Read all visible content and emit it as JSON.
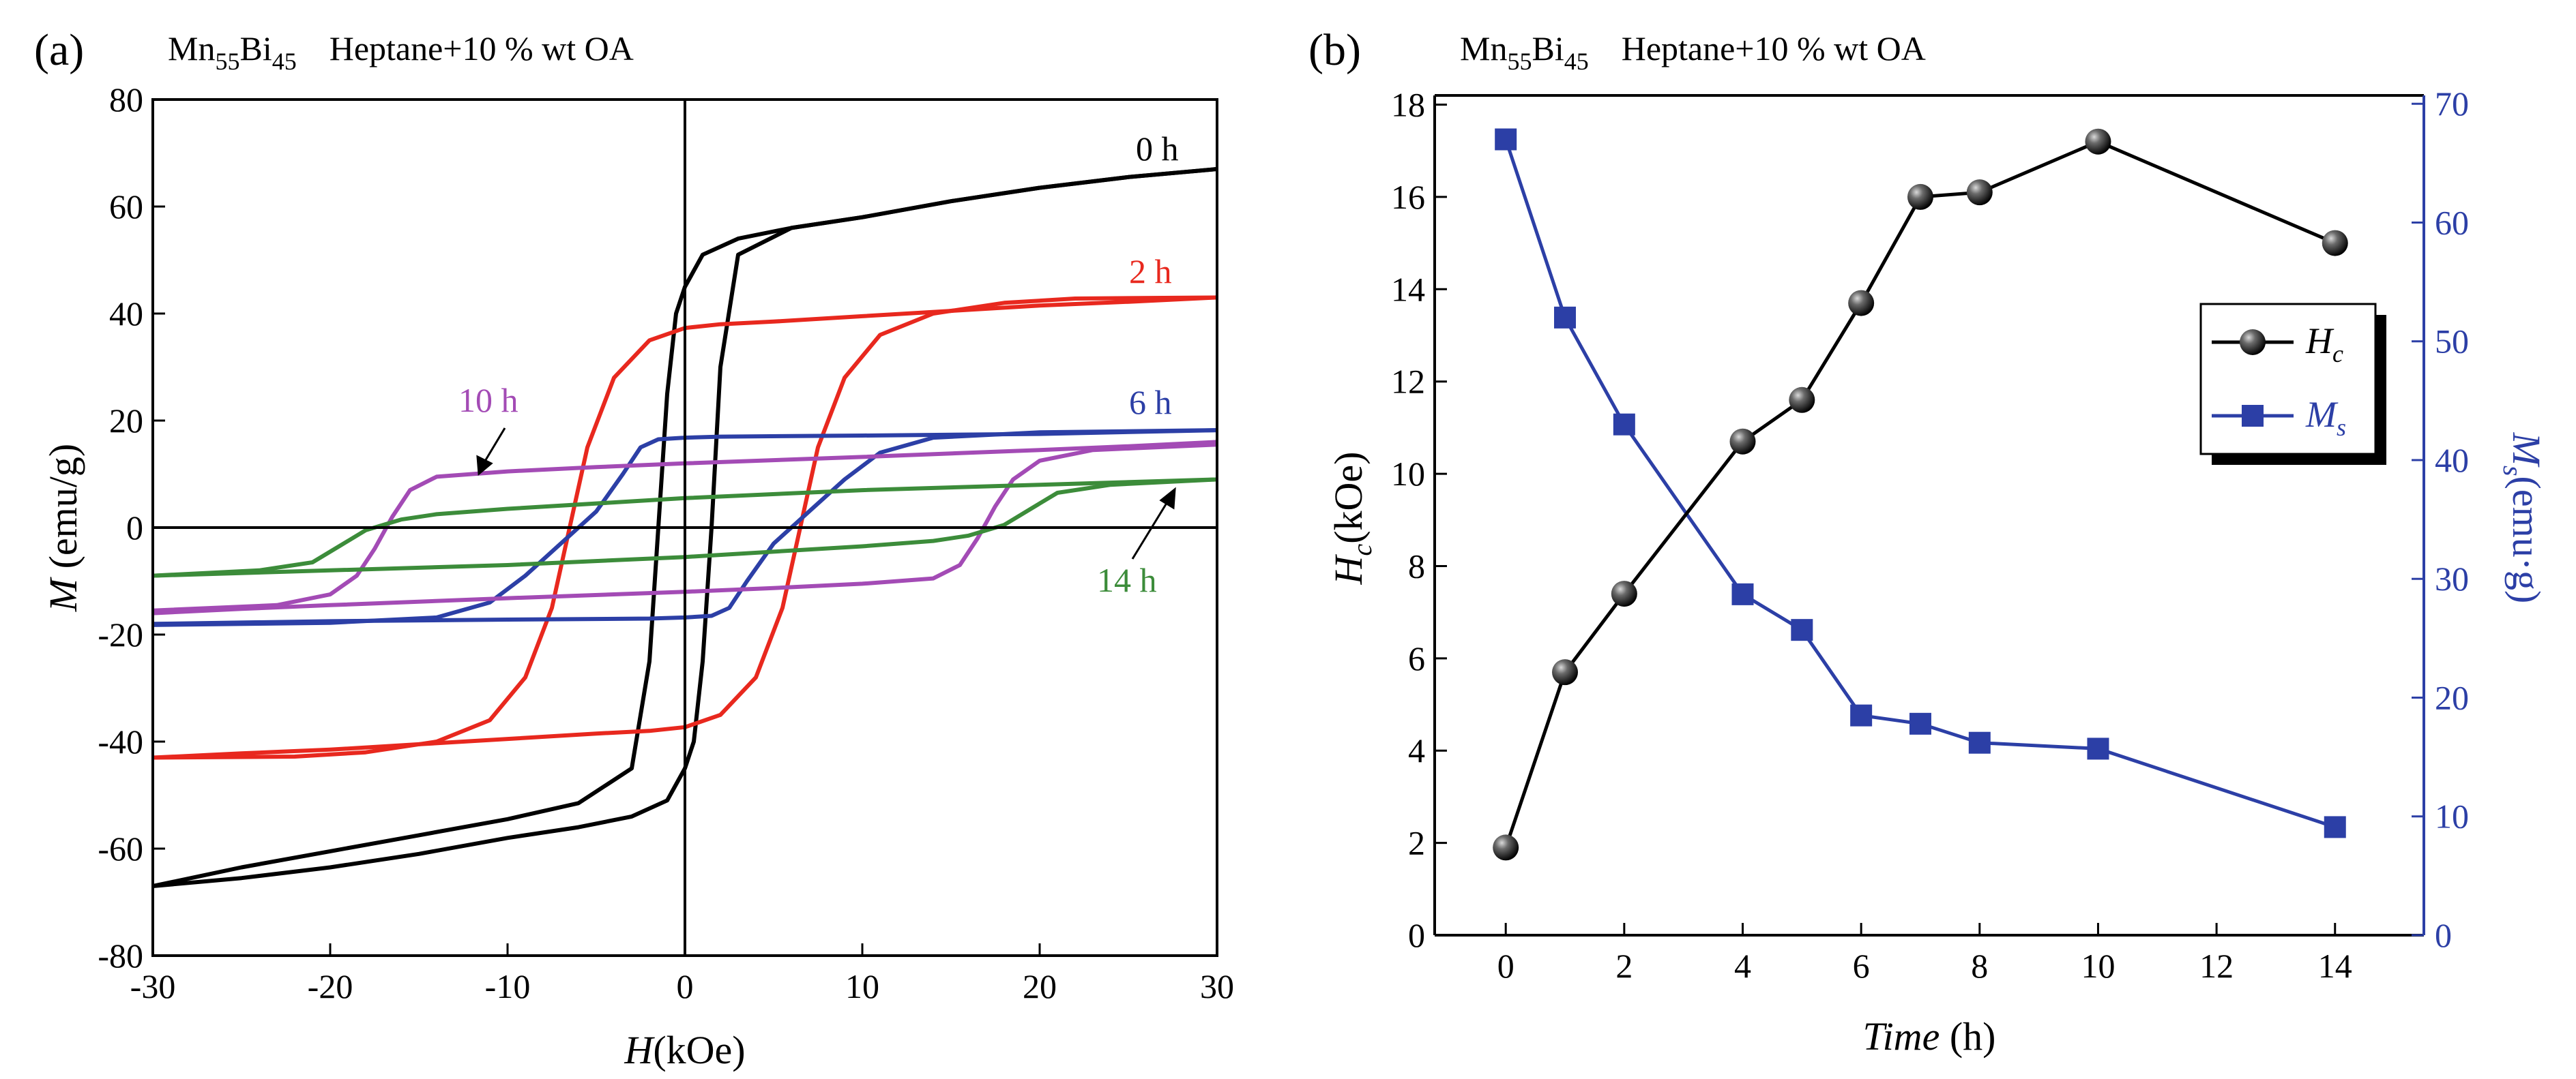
{
  "chart_data": [
    {
      "id": "a",
      "type": "line",
      "panel_label": "(a)",
      "title": {
        "sample": "Mn",
        "sub1": "55",
        "element2": "Bi",
        "sub2": "45",
        "condition": "Heptane+10 % wt OA"
      },
      "xlabel": {
        "italic": "H",
        "rest": "(kOe)"
      },
      "ylabel": {
        "italic": "M",
        "rest": " (emu/g)"
      },
      "xlim": [
        -30,
        30
      ],
      "ylim": [
        -80,
        80
      ],
      "xticks": [
        -30,
        -20,
        -10,
        0,
        10,
        20,
        30
      ],
      "yticks": [
        -80,
        -60,
        -40,
        -20,
        0,
        20,
        40,
        60,
        80
      ],
      "reference_lines": {
        "x": 0,
        "y": 0
      },
      "series": [
        {
          "name": "0 h",
          "color": "#000000",
          "upper": [
            [
              -30,
              -67
            ],
            [
              -25,
              -63.5
            ],
            [
              -20,
              -60.5
            ],
            [
              -15,
              -57.5
            ],
            [
              -10,
              -54.5
            ],
            [
              -6,
              -51.5
            ],
            [
              -3,
              -45
            ],
            [
              -2,
              -25
            ],
            [
              -1.5,
              0
            ],
            [
              -1,
              25
            ],
            [
              -0.5,
              40
            ],
            [
              0,
              45
            ],
            [
              1,
              51
            ],
            [
              3,
              54
            ],
            [
              6,
              56
            ],
            [
              10,
              58
            ],
            [
              15,
              61
            ],
            [
              20,
              63.5
            ],
            [
              25,
              65.5
            ],
            [
              30,
              67
            ]
          ],
          "lower": [
            [
              30,
              67
            ],
            [
              25,
              65.5
            ],
            [
              20,
              63.5
            ],
            [
              15,
              61
            ],
            [
              10,
              58
            ],
            [
              6,
              56
            ],
            [
              3,
              51
            ],
            [
              2,
              30
            ],
            [
              1.5,
              0
            ],
            [
              1,
              -25
            ],
            [
              0.5,
              -40
            ],
            [
              0,
              -45
            ],
            [
              -1,
              -51
            ],
            [
              -3,
              -54
            ],
            [
              -6,
              -56
            ],
            [
              -10,
              -58
            ],
            [
              -15,
              -61
            ],
            [
              -20,
              -63.5
            ],
            [
              -25,
              -65.5
            ],
            [
              -30,
              -67
            ]
          ]
        },
        {
          "name": "2 h",
          "color": "#e8281e",
          "upper": [
            [
              -30,
              -43
            ],
            [
              -25,
              -42.2
            ],
            [
              -20,
              -41.5
            ],
            [
              -15,
              -40.5
            ],
            [
              -10,
              -39.5
            ],
            [
              -5,
              -38.5
            ],
            [
              -2,
              -38
            ],
            [
              0,
              -37.3
            ],
            [
              2,
              -35
            ],
            [
              4,
              -28
            ],
            [
              5.5,
              -15
            ],
            [
              6.5,
              0
            ],
            [
              7.5,
              15
            ],
            [
              9,
              28
            ],
            [
              11,
              36
            ],
            [
              14,
              40
            ],
            [
              18,
              42
            ],
            [
              22,
              42.8
            ],
            [
              30,
              43
            ]
          ],
          "lower": [
            [
              30,
              43
            ],
            [
              25,
              42.2
            ],
            [
              20,
              41.5
            ],
            [
              15,
              40.5
            ],
            [
              10,
              39.5
            ],
            [
              5,
              38.5
            ],
            [
              2,
              38
            ],
            [
              0,
              37.3
            ],
            [
              -2,
              35
            ],
            [
              -4,
              28
            ],
            [
              -5.5,
              15
            ],
            [
              -6.5,
              0
            ],
            [
              -7.5,
              -15
            ],
            [
              -9,
              -28
            ],
            [
              -11,
              -36
            ],
            [
              -14,
              -40
            ],
            [
              -18,
              -42
            ],
            [
              -22,
              -42.8
            ],
            [
              -30,
              -43
            ]
          ]
        },
        {
          "name": "6 h",
          "color": "#2c3fa6",
          "upper": [
            [
              -30,
              -18
            ],
            [
              -20,
              -17.5
            ],
            [
              -10,
              -17.2
            ],
            [
              -2,
              -17
            ],
            [
              0,
              -16.8
            ],
            [
              1.5,
              -16.5
            ],
            [
              2.5,
              -15
            ],
            [
              3.5,
              -10
            ],
            [
              5,
              -3
            ],
            [
              7,
              3
            ],
            [
              9,
              9
            ],
            [
              11,
              14
            ],
            [
              14,
              16.8
            ],
            [
              20,
              17.8
            ],
            [
              30,
              18.2
            ]
          ],
          "lower": [
            [
              30,
              18.2
            ],
            [
              20,
              17.5
            ],
            [
              10,
              17.2
            ],
            [
              2,
              17
            ],
            [
              0,
              16.8
            ],
            [
              -1.5,
              16.5
            ],
            [
              -2.5,
              15
            ],
            [
              -3.5,
              10
            ],
            [
              -5,
              3
            ],
            [
              -7,
              -3
            ],
            [
              -9,
              -9
            ],
            [
              -11,
              -14
            ],
            [
              -14,
              -16.8
            ],
            [
              -20,
              -17.8
            ],
            [
              -30,
              -18.2
            ]
          ]
        },
        {
          "name": "10 h",
          "color": "#a34bb5",
          "upper": [
            [
              -30,
              -16
            ],
            [
              -25,
              -15.2
            ],
            [
              -20,
              -14.5
            ],
            [
              -10,
              -13.2
            ],
            [
              0,
              -12
            ],
            [
              5,
              -11.3
            ],
            [
              10,
              -10.5
            ],
            [
              14,
              -9.5
            ],
            [
              15.5,
              -7
            ],
            [
              16.5,
              -2
            ],
            [
              17.5,
              4
            ],
            [
              18.5,
              9
            ],
            [
              20,
              12.5
            ],
            [
              23,
              14.5
            ],
            [
              30,
              15.5
            ]
          ],
          "lower": [
            [
              30,
              16
            ],
            [
              25,
              15.2
            ],
            [
              20,
              14.5
            ],
            [
              10,
              13.2
            ],
            [
              0,
              12
            ],
            [
              -5,
              11.3
            ],
            [
              -10,
              10.5
            ],
            [
              -14,
              9.5
            ],
            [
              -15.5,
              7
            ],
            [
              -16.5,
              2
            ],
            [
              -17.5,
              -4
            ],
            [
              -18.5,
              -9
            ],
            [
              -20,
              -12.5
            ],
            [
              -23,
              -14.5
            ],
            [
              -30,
              -15.5
            ]
          ]
        },
        {
          "name": "14 h",
          "color": "#3c8c3a",
          "upper": [
            [
              -30,
              -9
            ],
            [
              -20,
              -8
            ],
            [
              -10,
              -7
            ],
            [
              0,
              -5.5
            ],
            [
              10,
              -3.5
            ],
            [
              14,
              -2.5
            ],
            [
              16,
              -1.5
            ],
            [
              18,
              0.5
            ],
            [
              19.5,
              3.5
            ],
            [
              21,
              6.5
            ],
            [
              24,
              8
            ],
            [
              30,
              9
            ]
          ],
          "lower": [
            [
              30,
              9
            ],
            [
              20,
              8
            ],
            [
              10,
              7
            ],
            [
              0,
              5.5
            ],
            [
              -10,
              3.5
            ],
            [
              -14,
              2.5
            ],
            [
              -16,
              1.5
            ],
            [
              -18,
              -0.5
            ],
            [
              -19.5,
              -3.5
            ],
            [
              -21,
              -6.5
            ],
            [
              -24,
              -8
            ],
            [
              -30,
              -9
            ]
          ]
        }
      ]
    },
    {
      "id": "b",
      "type": "line",
      "panel_label": "(b)",
      "title": {
        "sample": "Mn",
        "sub1": "55",
        "element2": "Bi",
        "sub2": "45",
        "condition": "Heptane+10 % wt OA"
      },
      "xlabel": {
        "italic": "Time",
        "rest": " (h)"
      },
      "ylabel": {
        "main": "H",
        "sub": "c",
        "rest": "(kOe)"
      },
      "y2label": {
        "main": "M",
        "sub": "s",
        "rest": "(emu·g)"
      },
      "xlim": [
        -1.2,
        15.5
      ],
      "ylim": [
        0,
        18.2
      ],
      "y2lim": [
        0,
        70.7
      ],
      "xticks": [
        0,
        2,
        4,
        6,
        8,
        10,
        12,
        14
      ],
      "yticks": [
        0,
        2,
        4,
        6,
        8,
        10,
        12,
        14,
        16,
        18
      ],
      "y2ticks": [
        0,
        10,
        20,
        30,
        40,
        50,
        60,
        70
      ],
      "legend": {
        "position": "middle-right",
        "entries": [
          {
            "main": "H",
            "sub": "c"
          },
          {
            "main": "M",
            "sub": "s"
          }
        ]
      },
      "series": [
        {
          "name": "Hc",
          "axis": "left",
          "color": "#000000",
          "marker": "sphere",
          "x": [
            0,
            1,
            2,
            4,
            5,
            6,
            7,
            8,
            10,
            14
          ],
          "values": [
            1.9,
            5.7,
            7.4,
            10.7,
            11.6,
            13.7,
            16.0,
            16.1,
            17.2,
            15.0
          ]
        },
        {
          "name": "Ms",
          "axis": "right",
          "color": "#2c3fa6",
          "marker": "square",
          "x": [
            0,
            1,
            2,
            4,
            5,
            6,
            7,
            8,
            10,
            14
          ],
          "values": [
            67,
            52,
            43,
            28.7,
            25.7,
            18.5,
            17.8,
            16.2,
            15.7,
            9.1
          ]
        }
      ]
    }
  ]
}
